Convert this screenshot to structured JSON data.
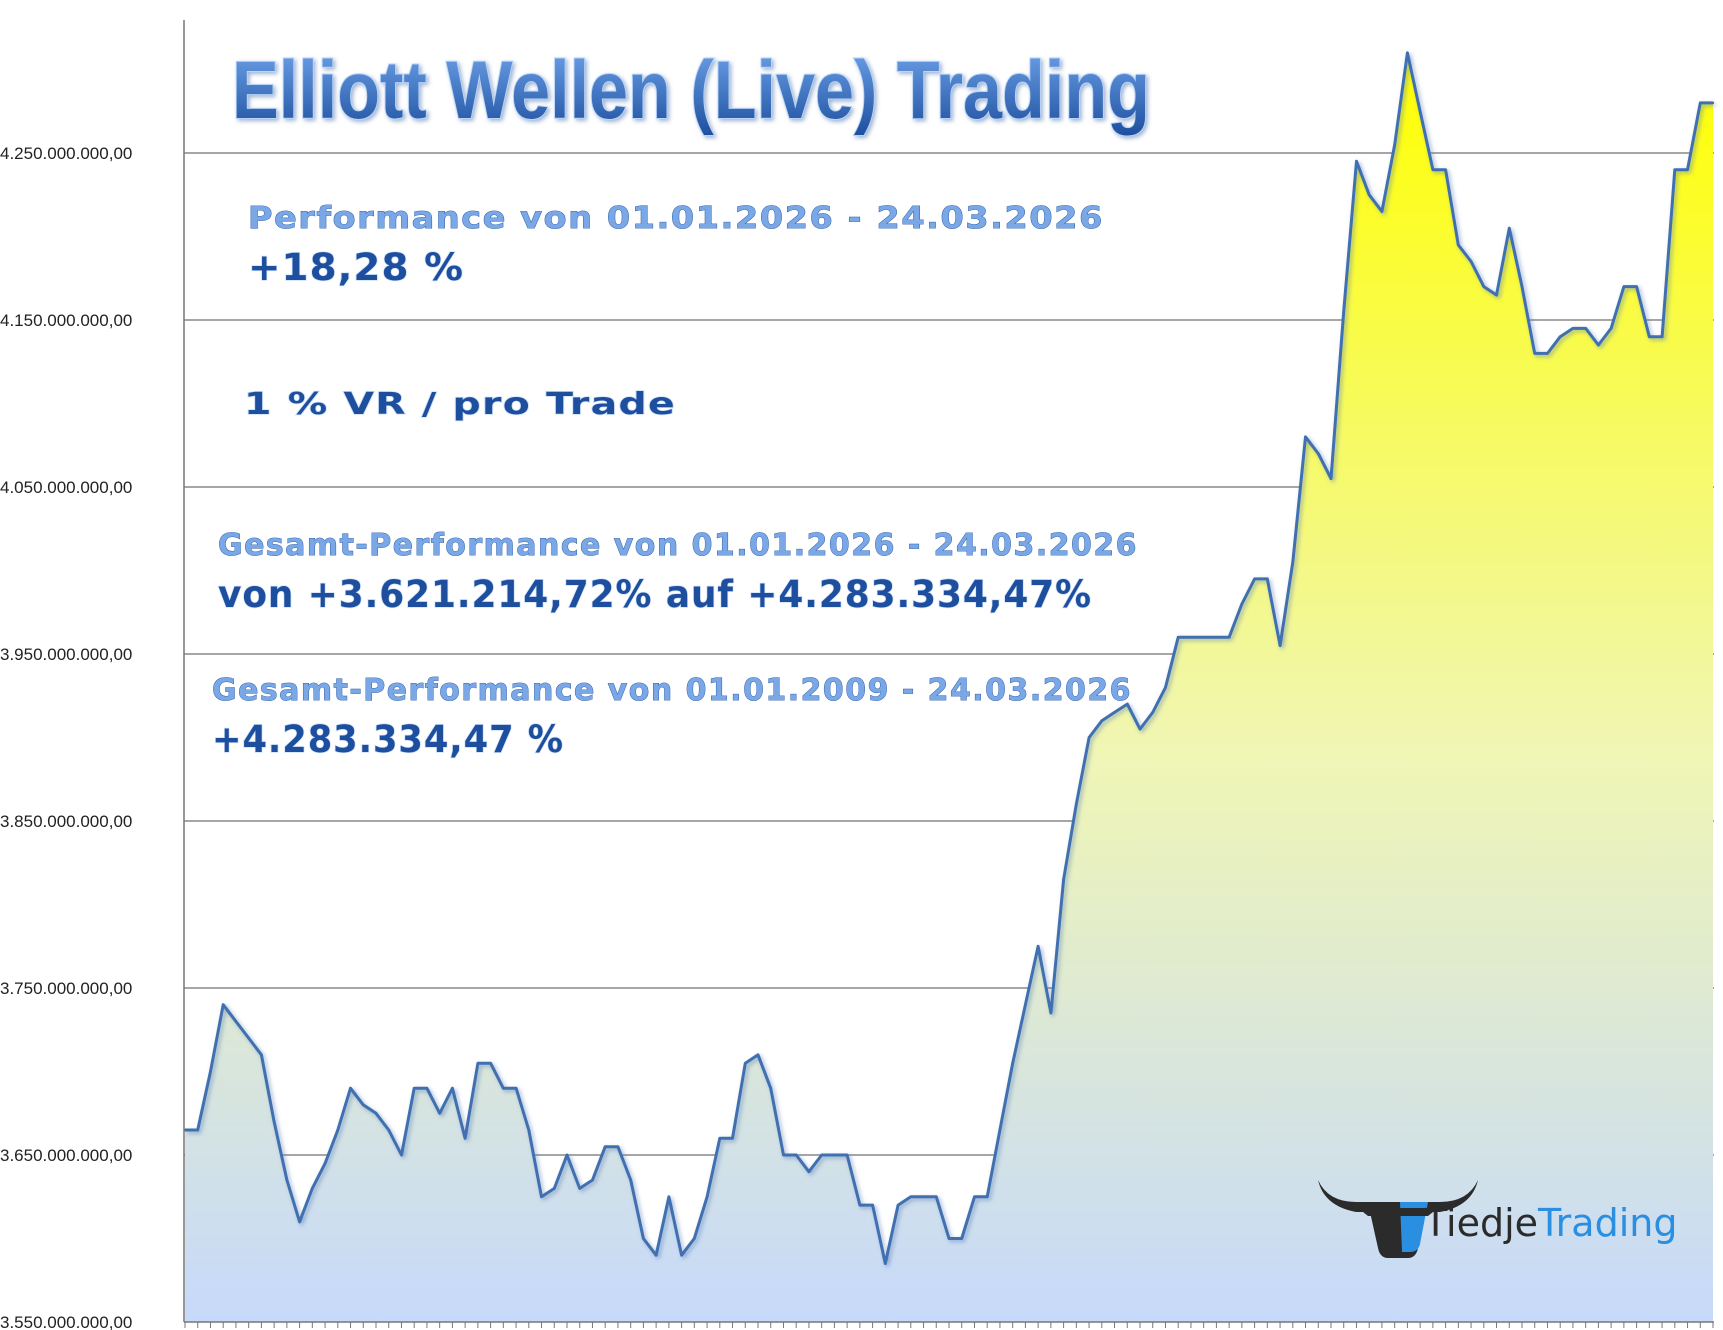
{
  "chart_data": {
    "type": "area",
    "title": "Elliott Wellen (Live) Trading",
    "ylim": [
      3550000000,
      4300000000
    ],
    "y_ticks": [
      3550000000,
      3650000000,
      3750000000,
      3850000000,
      3950000000,
      4050000000,
      4150000000,
      4250000000
    ],
    "y_tick_labels": [
      "3.550.000.000,00",
      "3.650.000.000,00",
      "3.750.000.000,00",
      "3.850.000.000,00",
      "3.950.000.000,00",
      "4.050.000.000,00",
      "4.150.000.000,00",
      "4.250.000.000,00"
    ],
    "grid": true,
    "legend": "none",
    "colors": {
      "top": "#ffff00",
      "bottom": "#c9dcfa",
      "line": "#3f6fb0",
      "grid": "#888888"
    },
    "values": [
      3665000000,
      3665000000,
      3700000000,
      3740000000,
      3730000000,
      3720000000,
      3710000000,
      3670000000,
      3635000000,
      3610000000,
      3630000000,
      3645000000,
      3665000000,
      3690000000,
      3680000000,
      3675000000,
      3665000000,
      3650000000,
      3690000000,
      3690000000,
      3675000000,
      3690000000,
      3660000000,
      3705000000,
      3705000000,
      3690000000,
      3690000000,
      3665000000,
      3625000000,
      3630000000,
      3650000000,
      3630000000,
      3635000000,
      3655000000,
      3655000000,
      3635000000,
      3600000000,
      3590000000,
      3625000000,
      3590000000,
      3600000000,
      3625000000,
      3660000000,
      3660000000,
      3705000000,
      3710000000,
      3690000000,
      3650000000,
      3650000000,
      3640000000,
      3650000000,
      3650000000,
      3650000000,
      3620000000,
      3620000000,
      3585000000,
      3620000000,
      3625000000,
      3625000000,
      3625000000,
      3600000000,
      3600000000,
      3625000000,
      3625000000,
      3665000000,
      3705000000,
      3740000000,
      3775000000,
      3735000000,
      3815000000,
      3860000000,
      3900000000,
      3910000000,
      3915000000,
      3920000000,
      3905000000,
      3915000000,
      3930000000,
      3960000000,
      3960000000,
      3960000000,
      3960000000,
      3960000000,
      3980000000,
      3995000000,
      3995000000,
      3955000000,
      4005000000,
      4080000000,
      4070000000,
      4055000000,
      4155000000,
      4245000000,
      4225000000,
      4215000000,
      4255000000,
      4310000000,
      4275000000,
      4240000000,
      4240000000,
      4195000000,
      4185000000,
      4170000000,
      4165000000,
      4205000000,
      4170000000,
      4130000000,
      4130000000,
      4140000000,
      4145000000,
      4145000000,
      4135000000,
      4145000000,
      4170000000,
      4170000000,
      4140000000,
      4140000000,
      4240000000,
      4240000000,
      4280000000,
      4280000000
    ]
  },
  "annotations": {
    "performance_label": "Performance  von  01.01.2026 - 24.03.2026",
    "performance_value": "+18,28 %",
    "risk_label": "1 % VR / pro Trade",
    "total_label_1": "Gesamt-Performance  von  01.01.2026 - 24.03.2026",
    "total_value_1": "von +3.621.214,72% auf  +4.283.334,47%",
    "total_label_2": "Gesamt-Performance  von  01.01.2009 - 24.03.2026",
    "total_value_2": "+4.283.334,47 %"
  },
  "logo": {
    "icon": "bull-head-icon",
    "word_dark": "Tiedje",
    "word_light": "Trading",
    "colors": {
      "dark": "#2b2b2b",
      "light": "#2a8fe0"
    }
  }
}
